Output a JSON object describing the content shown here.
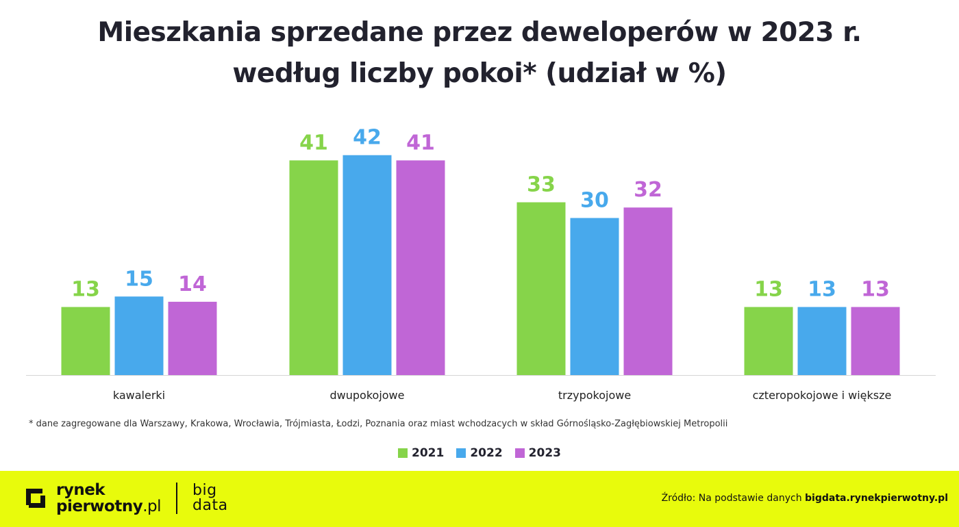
{
  "title": {
    "line1": "Mieszkania sprzedane przez deweloperów w 2023 r.",
    "line2": "według liczby pokoi* (udział w %)"
  },
  "chart_data": {
    "type": "bar",
    "categories": [
      "kawalerki",
      "dwupokojowe",
      "trzypokojowe",
      "czteropokojowe i większe"
    ],
    "series": [
      {
        "name": "2021",
        "color": "#86d44a",
        "values": [
          13,
          41,
          33,
          13
        ]
      },
      {
        "name": "2022",
        "color": "#48a9ec",
        "values": [
          15,
          42,
          30,
          13
        ]
      },
      {
        "name": "2023",
        "color": "#c066d6",
        "values": [
          14,
          41,
          32,
          13
        ]
      }
    ],
    "ylim": [
      0,
      42
    ],
    "grid": false,
    "legend": "bottom-center",
    "data_labels": true
  },
  "footnote": "* dane zagregowane dla Warszawy, Krakowa, Wrocławia, Trójmiasta, Łodzi, Poznania oraz miast wchodzacych w skład Górnośląsko-Zagłębiowskiej Metropolii",
  "footer": {
    "brand_line1": "rynek",
    "brand_line2_bold": "pierwotny",
    "brand_line2_thin": ".pl",
    "bigdata_line1": "big",
    "bigdata_line2": "data",
    "source_prefix": "Źródło: Na podstawie danych ",
    "source_bold": "bigdata.rynekpierwotny.pl",
    "background": "#e8fb0c"
  },
  "icons": {
    "brand_logo": "bracket-square-icon"
  }
}
